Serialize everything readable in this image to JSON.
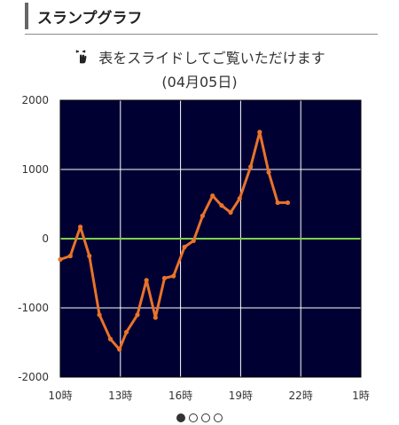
{
  "header": {
    "title": "スランプグラフ"
  },
  "hint": {
    "text": "表をスライドしてご覧いただけます",
    "icon": "swipe-hand-icon"
  },
  "date_label": "(04月05日)",
  "pager": {
    "count": 4,
    "active_index": 0
  },
  "colors": {
    "plot_bg": "#000033",
    "line": "#e8732a",
    "zero_line": "#7fcf4a",
    "grid": "#ffffff"
  },
  "chart_data": {
    "type": "line",
    "title": "",
    "xlabel": "",
    "ylabel": "",
    "ylim": [
      -2000,
      2000
    ],
    "yticks": [
      2000,
      1000,
      0,
      -1000,
      -2000
    ],
    "ytick_labels": [
      "2000",
      "1000",
      "0",
      "-1000",
      "-2000"
    ],
    "xticks": [
      10,
      13,
      16,
      19,
      22,
      25
    ],
    "xtick_labels": [
      "10時",
      "13時",
      "16時",
      "19時",
      "22時",
      "1時"
    ],
    "xlim": [
      10,
      25
    ],
    "grid": true,
    "series": [
      {
        "x": [
          10.0,
          10.5,
          11.0,
          11.45,
          11.95,
          12.5,
          12.95,
          13.3,
          13.85,
          14.3,
          14.75,
          15.2,
          15.65,
          16.2,
          16.65,
          17.1,
          17.6,
          18.05,
          18.5,
          18.95,
          19.5,
          19.95,
          20.4,
          20.85,
          21.35
        ],
        "y": [
          -300,
          -250,
          170,
          -250,
          -1100,
          -1450,
          -1600,
          -1350,
          -1100,
          -600,
          -1140,
          -570,
          -540,
          -120,
          -30,
          330,
          620,
          480,
          380,
          580,
          1040,
          1540,
          960,
          520,
          520
        ]
      }
    ]
  }
}
